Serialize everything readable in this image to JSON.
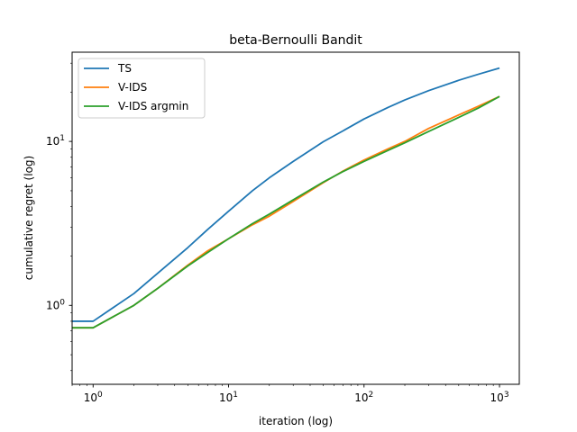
{
  "chart_data": {
    "type": "line",
    "title": "beta-Bernoulli Bandit",
    "xlabel": "iteration (log)",
    "ylabel": "cumulative regret (log)",
    "xscale": "log",
    "yscale": "log",
    "xlim": [
      0.7,
      1400
    ],
    "ylim": [
      0.33,
      35
    ],
    "grid": false,
    "legend_position": "top-left",
    "x_ticks": [
      {
        "value": 1,
        "base": "10",
        "exp": "0"
      },
      {
        "value": 10,
        "base": "10",
        "exp": "1"
      },
      {
        "value": 100,
        "base": "10",
        "exp": "2"
      },
      {
        "value": 1000,
        "base": "10",
        "exp": "3"
      }
    ],
    "y_ticks": [
      {
        "value": 1,
        "base": "10",
        "exp": "0"
      },
      {
        "value": 10,
        "base": "10",
        "exp": "1"
      }
    ],
    "series": [
      {
        "name": "TS",
        "color": "#1f77b4",
        "x": [
          0.7,
          1,
          2,
          3,
          5,
          7,
          10,
          15,
          20,
          30,
          50,
          70,
          100,
          150,
          200,
          300,
          500,
          700,
          1000
        ],
        "y": [
          0.8,
          0.8,
          1.18,
          1.57,
          2.25,
          2.9,
          3.75,
          5.0,
          6.0,
          7.55,
          9.95,
          11.6,
          13.7,
          16.1,
          17.9,
          20.4,
          23.6,
          25.7,
          28.0
        ]
      },
      {
        "name": "V-IDS",
        "color": "#ff7f0e",
        "x": [
          0.7,
          1,
          2,
          3,
          5,
          7,
          10,
          15,
          20,
          30,
          50,
          70,
          100,
          150,
          200,
          300,
          500,
          700,
          1000
        ],
        "y": [
          0.73,
          0.73,
          1.0,
          1.27,
          1.76,
          2.15,
          2.55,
          3.1,
          3.5,
          4.3,
          5.6,
          6.6,
          7.7,
          9.0,
          10.0,
          12.0,
          14.5,
          16.4,
          18.8
        ]
      },
      {
        "name": "V-IDS argmin",
        "color": "#2ca02c",
        "x": [
          0.7,
          1,
          2,
          3,
          5,
          7,
          10,
          15,
          20,
          30,
          50,
          70,
          100,
          150,
          200,
          300,
          500,
          700,
          1000
        ],
        "y": [
          0.73,
          0.73,
          1.0,
          1.27,
          1.74,
          2.1,
          2.55,
          3.15,
          3.6,
          4.4,
          5.65,
          6.55,
          7.55,
          8.8,
          9.8,
          11.5,
          14.0,
          16.0,
          18.8
        ]
      }
    ]
  }
}
